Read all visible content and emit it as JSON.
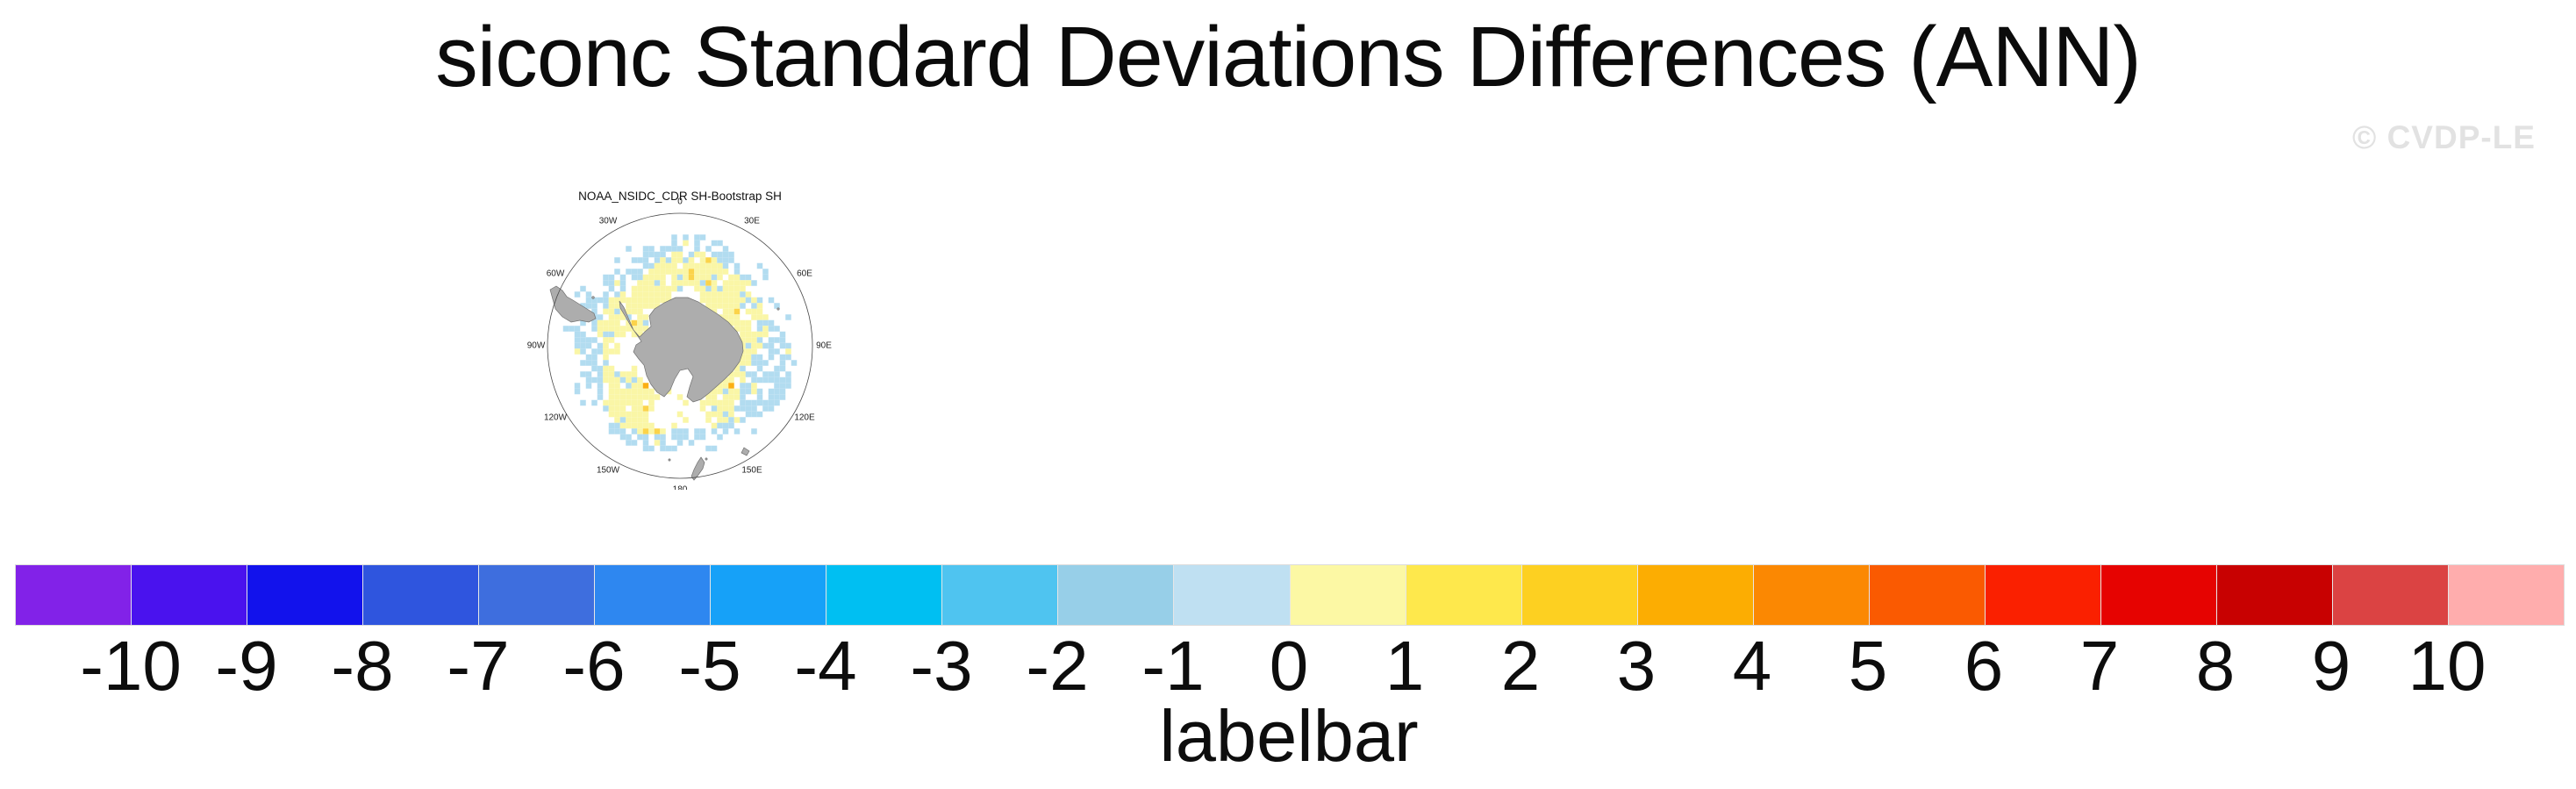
{
  "title": "siconc Standard Deviations Differences (ANN)",
  "watermark": "© CVDP-LE",
  "map": {
    "title": "NOAA_NSIDC_CDR SH-Bootstrap SH",
    "lon_labels": [
      {
        "text": "0",
        "deg": 0
      },
      {
        "text": "30E",
        "deg": 30
      },
      {
        "text": "60E",
        "deg": 60
      },
      {
        "text": "90E",
        "deg": 90
      },
      {
        "text": "120E",
        "deg": 120
      },
      {
        "text": "150E",
        "deg": 150
      },
      {
        "text": "180",
        "deg": 180
      },
      {
        "text": "150W",
        "deg": 210
      },
      {
        "text": "120W",
        "deg": 240
      },
      {
        "text": "90W",
        "deg": 270
      },
      {
        "text": "60W",
        "deg": 300
      },
      {
        "text": "30W",
        "deg": 330
      }
    ],
    "land_color": "#adadad",
    "coast_color": "#707070",
    "circle_color": "#4a4a4a",
    "label_color": "#222222",
    "cell_palette": {
      "neg_1_to_0": "#b2dcf0",
      "pos_0_to_1": "#faf6a6",
      "pos_1_to_2": "#fbd34a",
      "pos_2_to_3": "#fbaf14"
    },
    "seed": 12
  },
  "labelbar": {
    "caption": "labelbar",
    "tick_labels": [
      "-10",
      "-9",
      "-8",
      "-7",
      "-6",
      "-5",
      "-4",
      "-3",
      "-2",
      "-1",
      "0",
      "1",
      "2",
      "3",
      "4",
      "5",
      "6",
      "7",
      "8",
      "9",
      "10"
    ],
    "box_colors": [
      "#8222e8",
      "#4a12ee",
      "#1212ec",
      "#2f55de",
      "#3e6ede",
      "#2e87f0",
      "#16a1f8",
      "#00bff2",
      "#4fc4f0",
      "#97cfe8",
      "#bfe0f2",
      "#fcf8a4",
      "#fee84c",
      "#fdd021",
      "#fcad02",
      "#fb8802",
      "#fa5a01",
      "#fa2000",
      "#e60301",
      "#c80101",
      "#db4343",
      "#ffadad"
    ]
  },
  "chart_data": {
    "type": "heatmap",
    "title": "siconc Standard Deviations Differences (ANN)",
    "panel_title": "NOAA_NSIDC_CDR SH-Bootstrap SH",
    "variable": "siconc",
    "statistic": "Standard Deviations Differences",
    "season": "ANN",
    "projection_view": "Southern Hemisphere polar view with longitude labels 0, 30E, 60E, 90E, 120E, 150E, 180, 150W, 120W, 90W, 60W, 30W",
    "colorbar": {
      "caption": "labelbar",
      "orientation": "horizontal",
      "levels": [
        -10,
        -9,
        -8,
        -7,
        -6,
        -5,
        -4,
        -3,
        -2,
        -1,
        0,
        1,
        2,
        3,
        4,
        5,
        6,
        7,
        8,
        9,
        10
      ],
      "n_boxes": 22,
      "colors": [
        "#8222e8",
        "#4a12ee",
        "#1212ec",
        "#2f55de",
        "#3e6ede",
        "#2e87f0",
        "#16a1f8",
        "#00bff2",
        "#4fc4f0",
        "#97cfe8",
        "#bfe0f2",
        "#fcf8a4",
        "#fee84c",
        "#fdd021",
        "#fcad02",
        "#fb8802",
        "#fa5a01",
        "#fa2000",
        "#e60301",
        "#c80101",
        "#db4343",
        "#ffadad"
      ]
    },
    "map_reading": "Ring of grid cells in the sea-ice zone around Antarctica; differences fall almost entirely in the -1 to 0 bin (pale blue, outer ring) and 0 to 1 bin (pale yellow, inner ring), with a few isolated cells in the 1-2 and 2-3 bins."
  }
}
